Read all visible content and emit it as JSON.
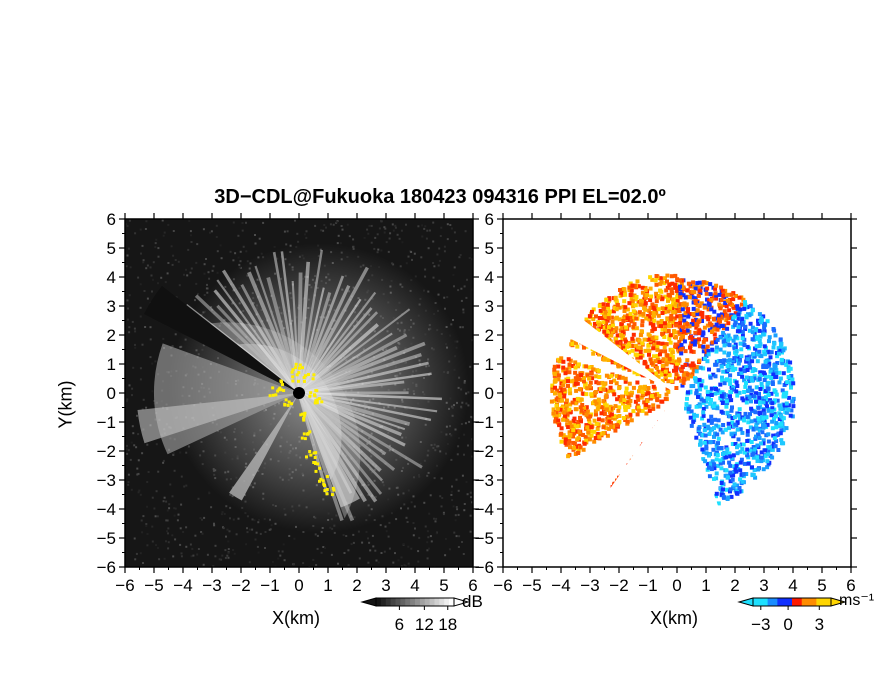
{
  "title": "3D−CDL@Fukuoka 180423 094316 PPI EL=02.0º",
  "left_panel": {
    "xlabel": "X(km)",
    "ylabel": "Y(km)",
    "colorbar": {
      "unit": "dB",
      "ticks": [
        "6",
        "12",
        "18"
      ]
    }
  },
  "right_panel": {
    "xlabel": "X(km)",
    "colorbar": {
      "unit": "ms⁻¹",
      "ticks": [
        "−3",
        "0",
        "3"
      ],
      "colors": [
        "#1ee0ff",
        "#1a8cff",
        "#1030ff",
        "#ff1a00",
        "#ff8c00",
        "#ffd500"
      ]
    }
  },
  "chart_data": [
    {
      "type": "heatmap",
      "panel": "left",
      "xlabel": "X(km)",
      "ylabel": "Y(km)",
      "xlim": [
        -6,
        6
      ],
      "ylim": [
        -6,
        6
      ],
      "x_ticks": [
        "−6",
        "−5",
        "−4",
        "−3",
        "−2",
        "−1",
        "0",
        "1",
        "2",
        "3",
        "4",
        "5",
        "6"
      ],
      "y_ticks": [
        "6",
        "5",
        "4",
        "3",
        "2",
        "1",
        "0",
        "−1",
        "−2",
        "−3",
        "−4",
        "−5",
        "−6"
      ],
      "colorbar": {
        "unit": "dB",
        "ticks": [
          6,
          12,
          18
        ]
      },
      "colors": {
        "background": "#161616",
        "signal": "#e8e8e8",
        "flag": "#ffee00",
        "center": "#000000"
      }
    },
    {
      "type": "heatmap",
      "panel": "right",
      "xlabel": "X(km)",
      "xlim": [
        -6,
        6
      ],
      "ylim": [
        -6,
        6
      ],
      "x_ticks": [
        "−6",
        "−5",
        "−4",
        "−3",
        "−2",
        "−1",
        "0",
        "1",
        "2",
        "3",
        "4",
        "5",
        "6"
      ],
      "y_ticks": [
        "6",
        "5",
        "4",
        "3",
        "2",
        "1",
        "0",
        "−1",
        "−2",
        "−3",
        "−4",
        "−5",
        "−6"
      ],
      "colorbar": {
        "unit": "ms⁻¹",
        "ticks": [
          -3,
          0,
          3
        ]
      },
      "colors": {
        "receding": "#ff5a00",
        "approaching": "#1a6cff"
      }
    }
  ]
}
